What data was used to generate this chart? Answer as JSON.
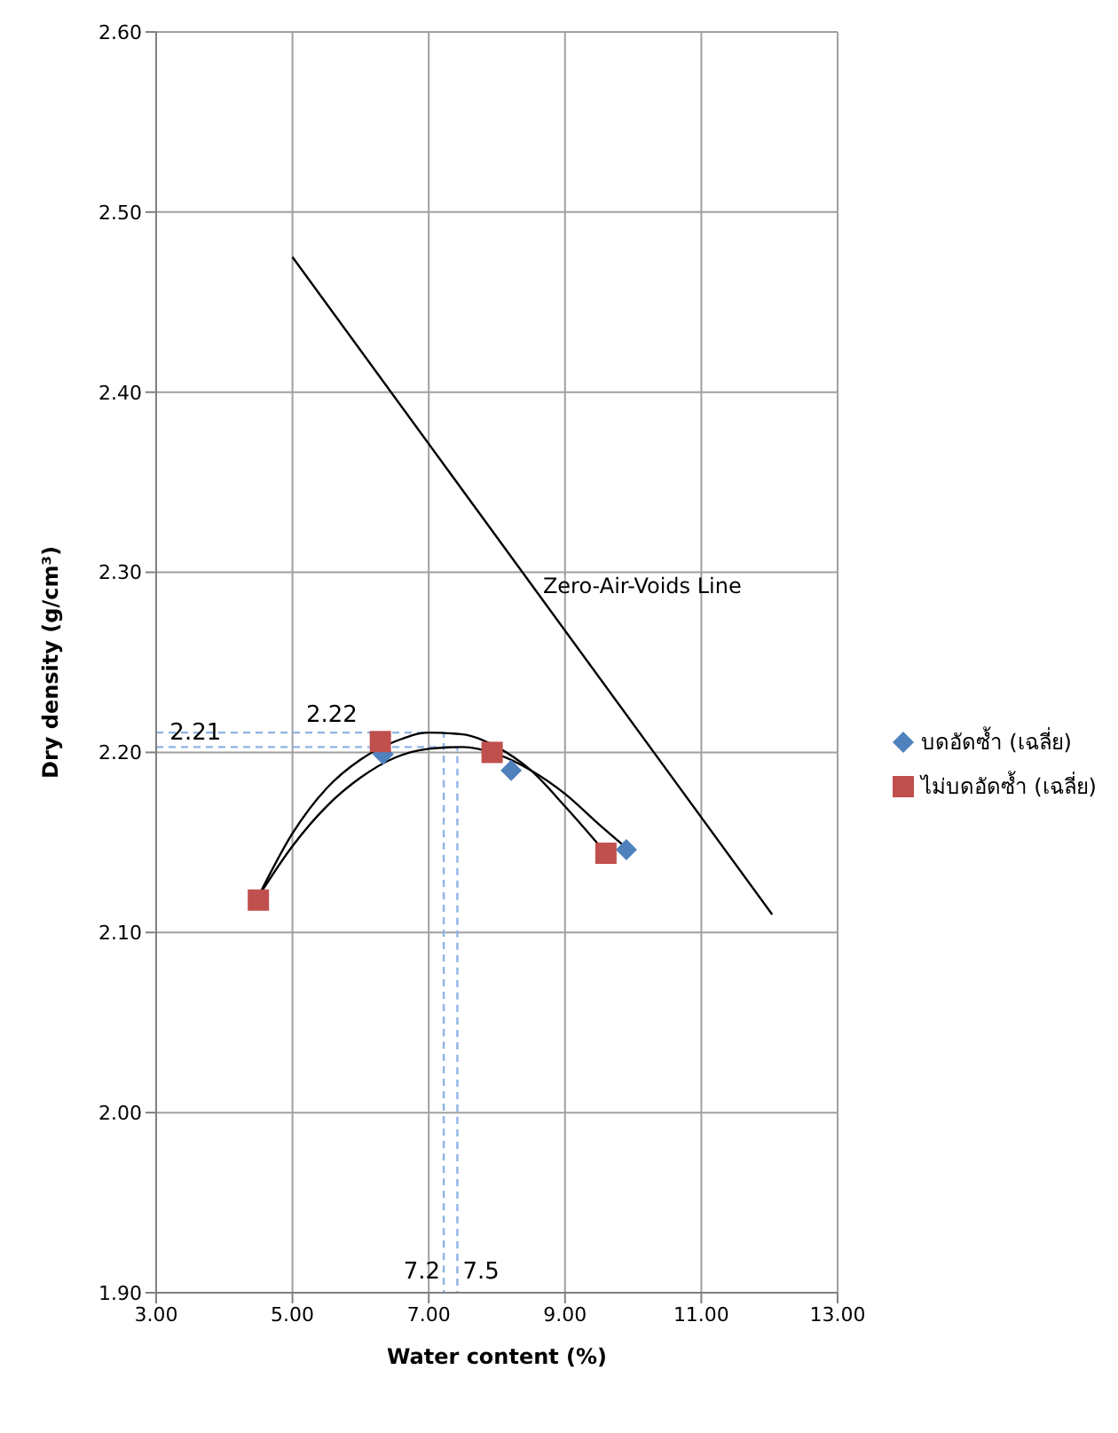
{
  "chart_data": {
    "type": "scatter",
    "xlabel": "Water content (%)",
    "ylabel": "Dry density (g/cm³)",
    "xlim": [
      3,
      13
    ],
    "xticks": [
      {
        "value": 3,
        "label": "3.00"
      },
      {
        "value": 5,
        "label": "5.00"
      },
      {
        "value": 7,
        "label": "7.00"
      },
      {
        "value": 9,
        "label": "9.00"
      },
      {
        "value": 11,
        "label": "11.00"
      },
      {
        "value": 13,
        "label": "13.00"
      }
    ],
    "ylim": [
      1.9,
      2.6
    ],
    "yticks": [
      {
        "value": 1.9,
        "label": "1.90"
      },
      {
        "value": 2.0,
        "label": "2.00"
      },
      {
        "value": 2.1,
        "label": "2.10"
      },
      {
        "value": 2.2,
        "label": "2.20"
      },
      {
        "value": 2.3,
        "label": "2.30"
      },
      {
        "value": 2.4,
        "label": "2.40"
      },
      {
        "value": 2.5,
        "label": "2.50"
      },
      {
        "value": 2.6,
        "label": "2.60"
      }
    ],
    "grid": true,
    "legend": "right",
    "series": [
      {
        "type": "line",
        "color": "#8eb4e3",
        "line_style": "dashed",
        "marker": "none",
        "x": [
          3,
          7.22,
          7.22
        ],
        "values": [
          2.211,
          2.211,
          1.9
        ]
      },
      {
        "type": "line",
        "color": "#8eb4e3",
        "line_style": "dashed",
        "marker": "none",
        "x": [
          3,
          7.42,
          7.42
        ],
        "values": [
          2.203,
          2.203,
          1.9
        ]
      },
      {
        "type": "line",
        "color": "#000000",
        "line_style": "solid",
        "marker": "none",
        "x": [
          4.5,
          5,
          5.5,
          6,
          6.5,
          7,
          7.5,
          8,
          8.5,
          9,
          9.6
        ],
        "values": [
          2.12,
          2.155,
          2.18,
          2.196,
          2.206,
          2.211,
          2.21,
          2.203,
          2.19,
          2.17,
          2.144
        ]
      },
      {
        "type": "line",
        "color": "#000000",
        "line_style": "solid",
        "marker": "none",
        "x": [
          4.5,
          5,
          5.5,
          6,
          6.5,
          7,
          7.5,
          8,
          8.5,
          9,
          9.5,
          9.9
        ],
        "values": [
          2.12,
          2.148,
          2.17,
          2.186,
          2.197,
          2.202,
          2.203,
          2.199,
          2.19,
          2.177,
          2.16,
          2.147
        ]
      },
      {
        "type": "line",
        "name": "Zero-Air-Voids Line",
        "color": "#000000",
        "line_style": "solid",
        "marker": "none",
        "x": [
          5,
          12.04
        ],
        "values": [
          2.475,
          2.11
        ]
      },
      {
        "name": "บดอัดซ้ำ (เฉลี่ย)",
        "color": "#4f81bd",
        "marker": "diamond",
        "x": [
          6.33,
          8.21,
          9.9
        ],
        "values": [
          2.199,
          2.19,
          2.146
        ]
      },
      {
        "name": "ไม่บดอัดซ้ำ (เฉลี่ย)",
        "color": "#c0504d",
        "marker": "square",
        "x": [
          4.5,
          6.29,
          7.93,
          9.6
        ],
        "values": [
          2.118,
          2.206,
          2.2,
          2.144
        ]
      }
    ],
    "annotations": [
      {
        "text": "2.21",
        "x": 3.2,
        "y": 2.203
      },
      {
        "text": "2.22",
        "x": 5.2,
        "y": 2.211
      },
      {
        "text": "7.2",
        "x": 7.22,
        "y": 1.9
      },
      {
        "text": "7.5",
        "x": 7.42,
        "y": 1.9
      }
    ]
  }
}
